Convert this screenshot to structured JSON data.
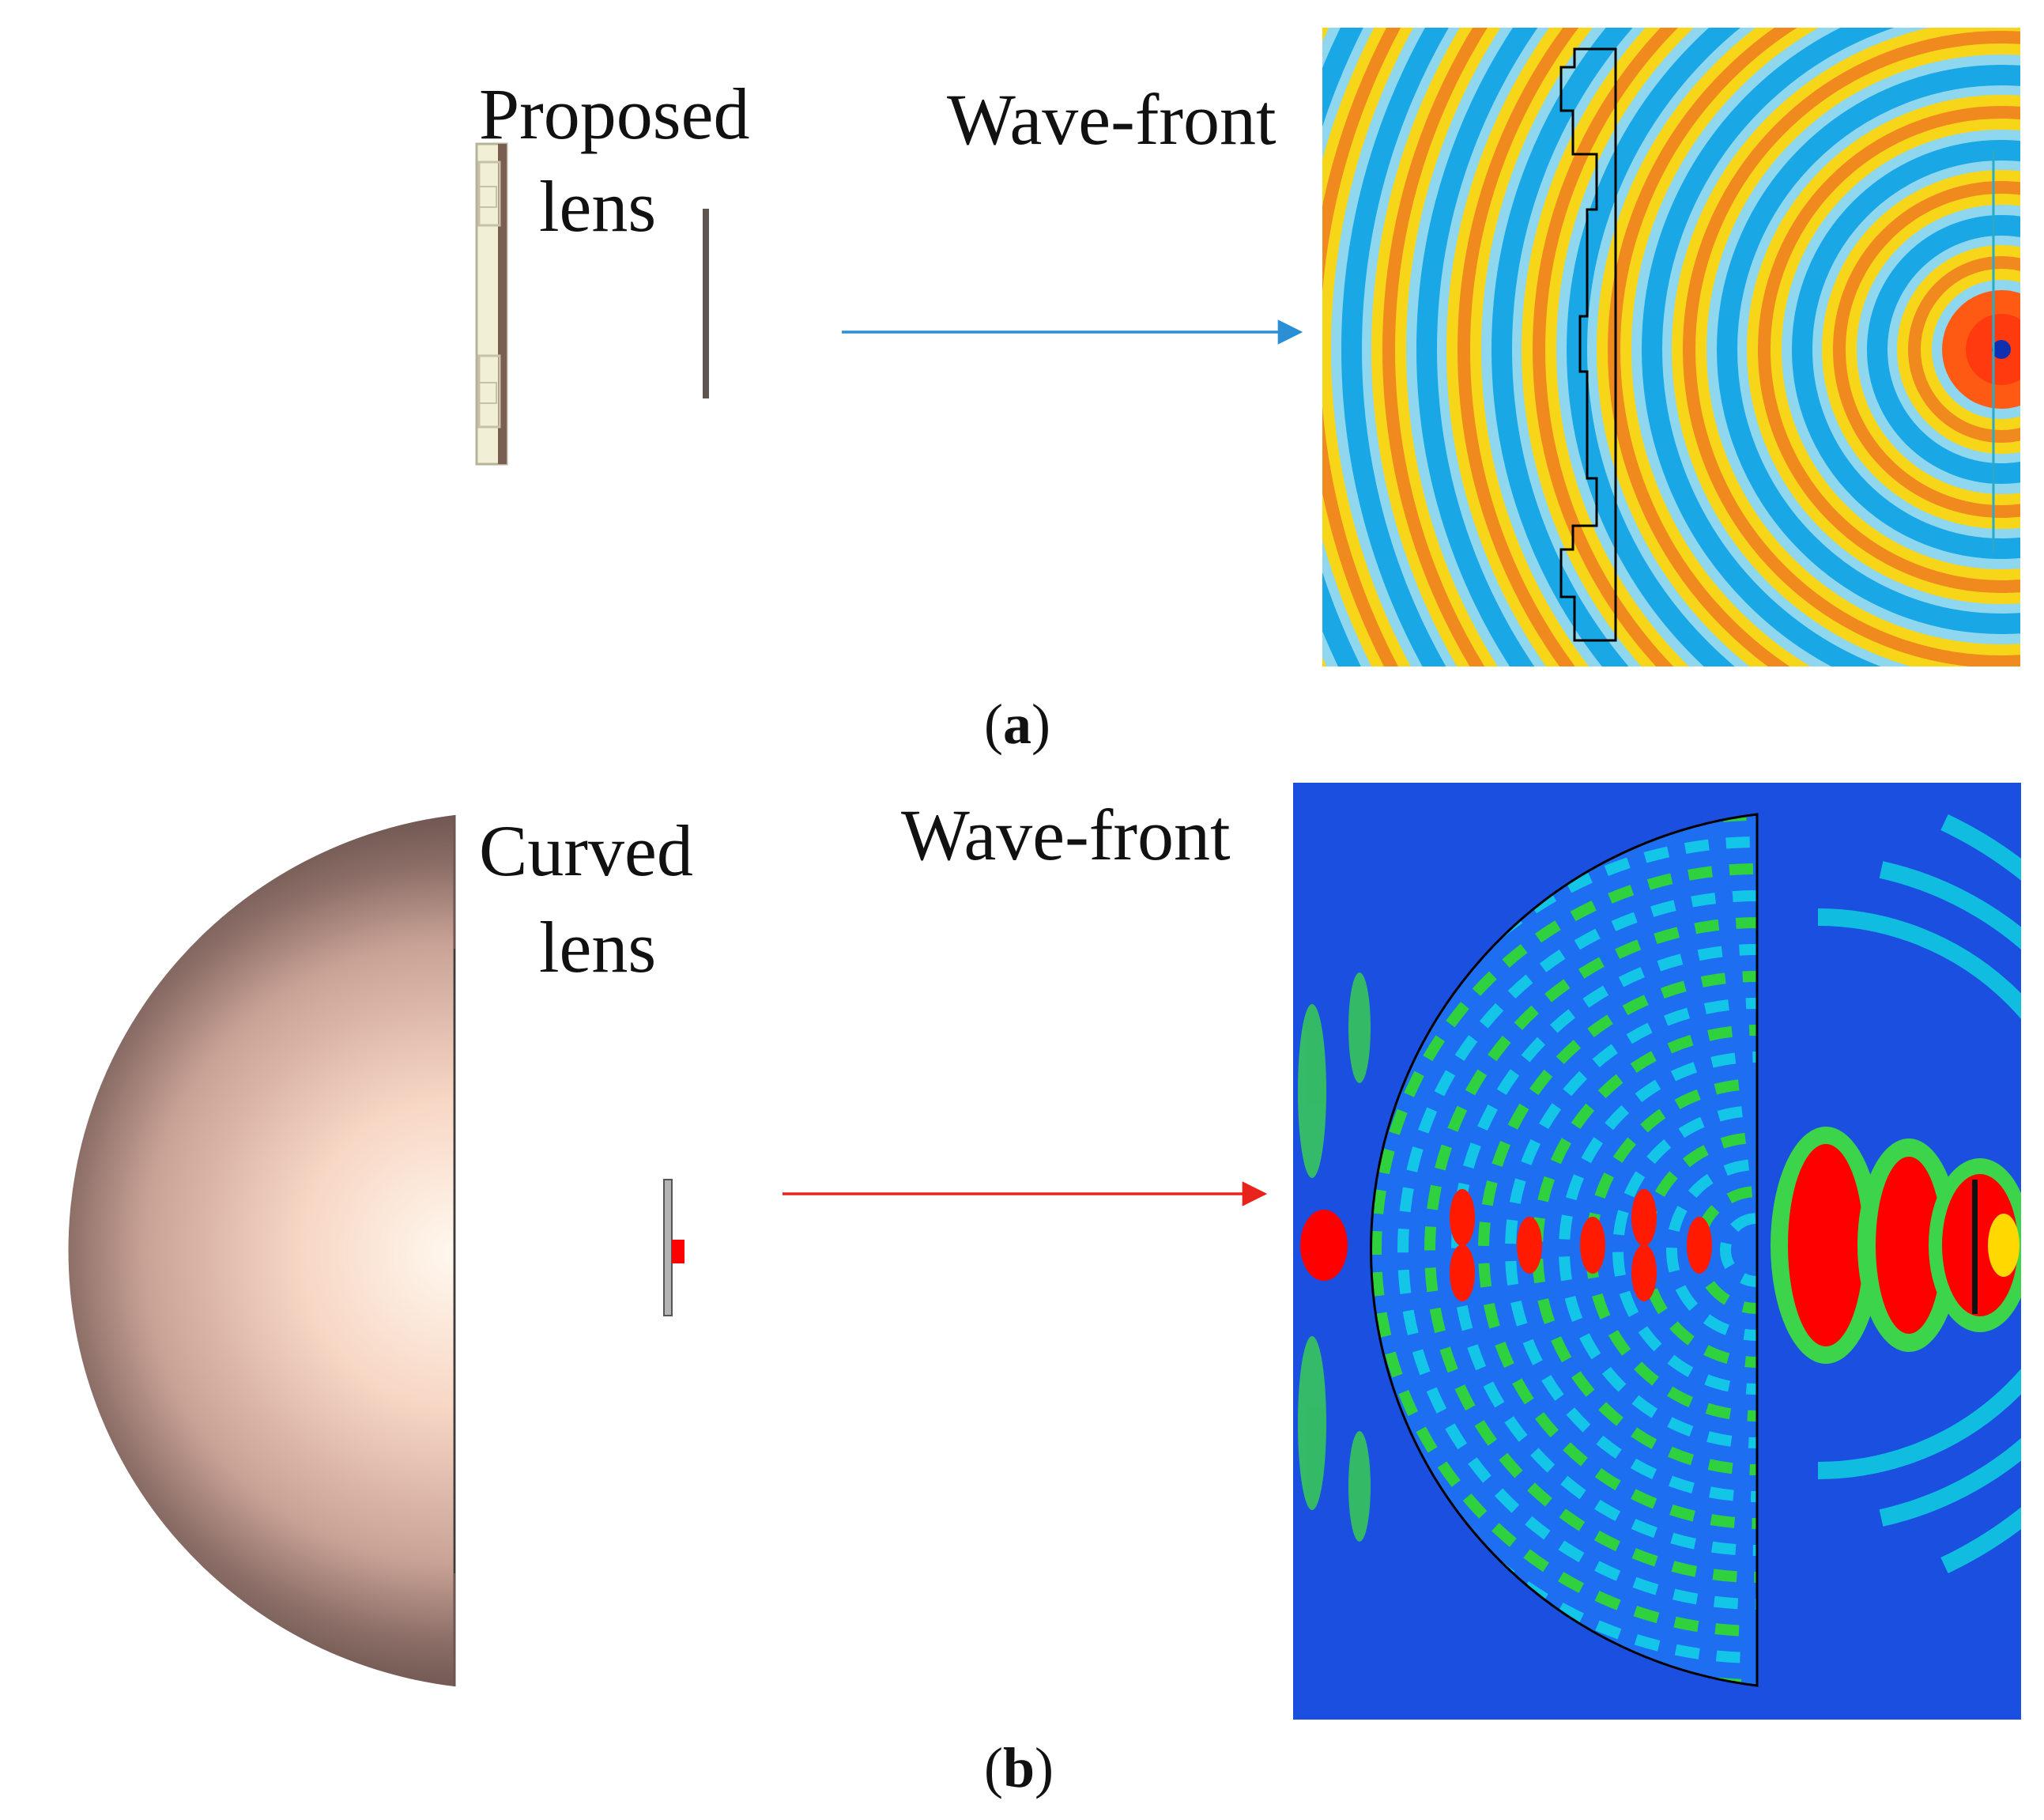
{
  "panel_a": {
    "lens_label_line1": "Proposed",
    "lens_label_line2": "lens",
    "field_label": "Wave-front",
    "caption_letter": "a",
    "arrow_color": "#2b8fd6"
  },
  "panel_b": {
    "lens_label_line1": "Curved",
    "lens_label_line2": "lens",
    "field_label": "Wave-front",
    "caption_letter": "b",
    "arrow_color": "#e8231c"
  }
}
